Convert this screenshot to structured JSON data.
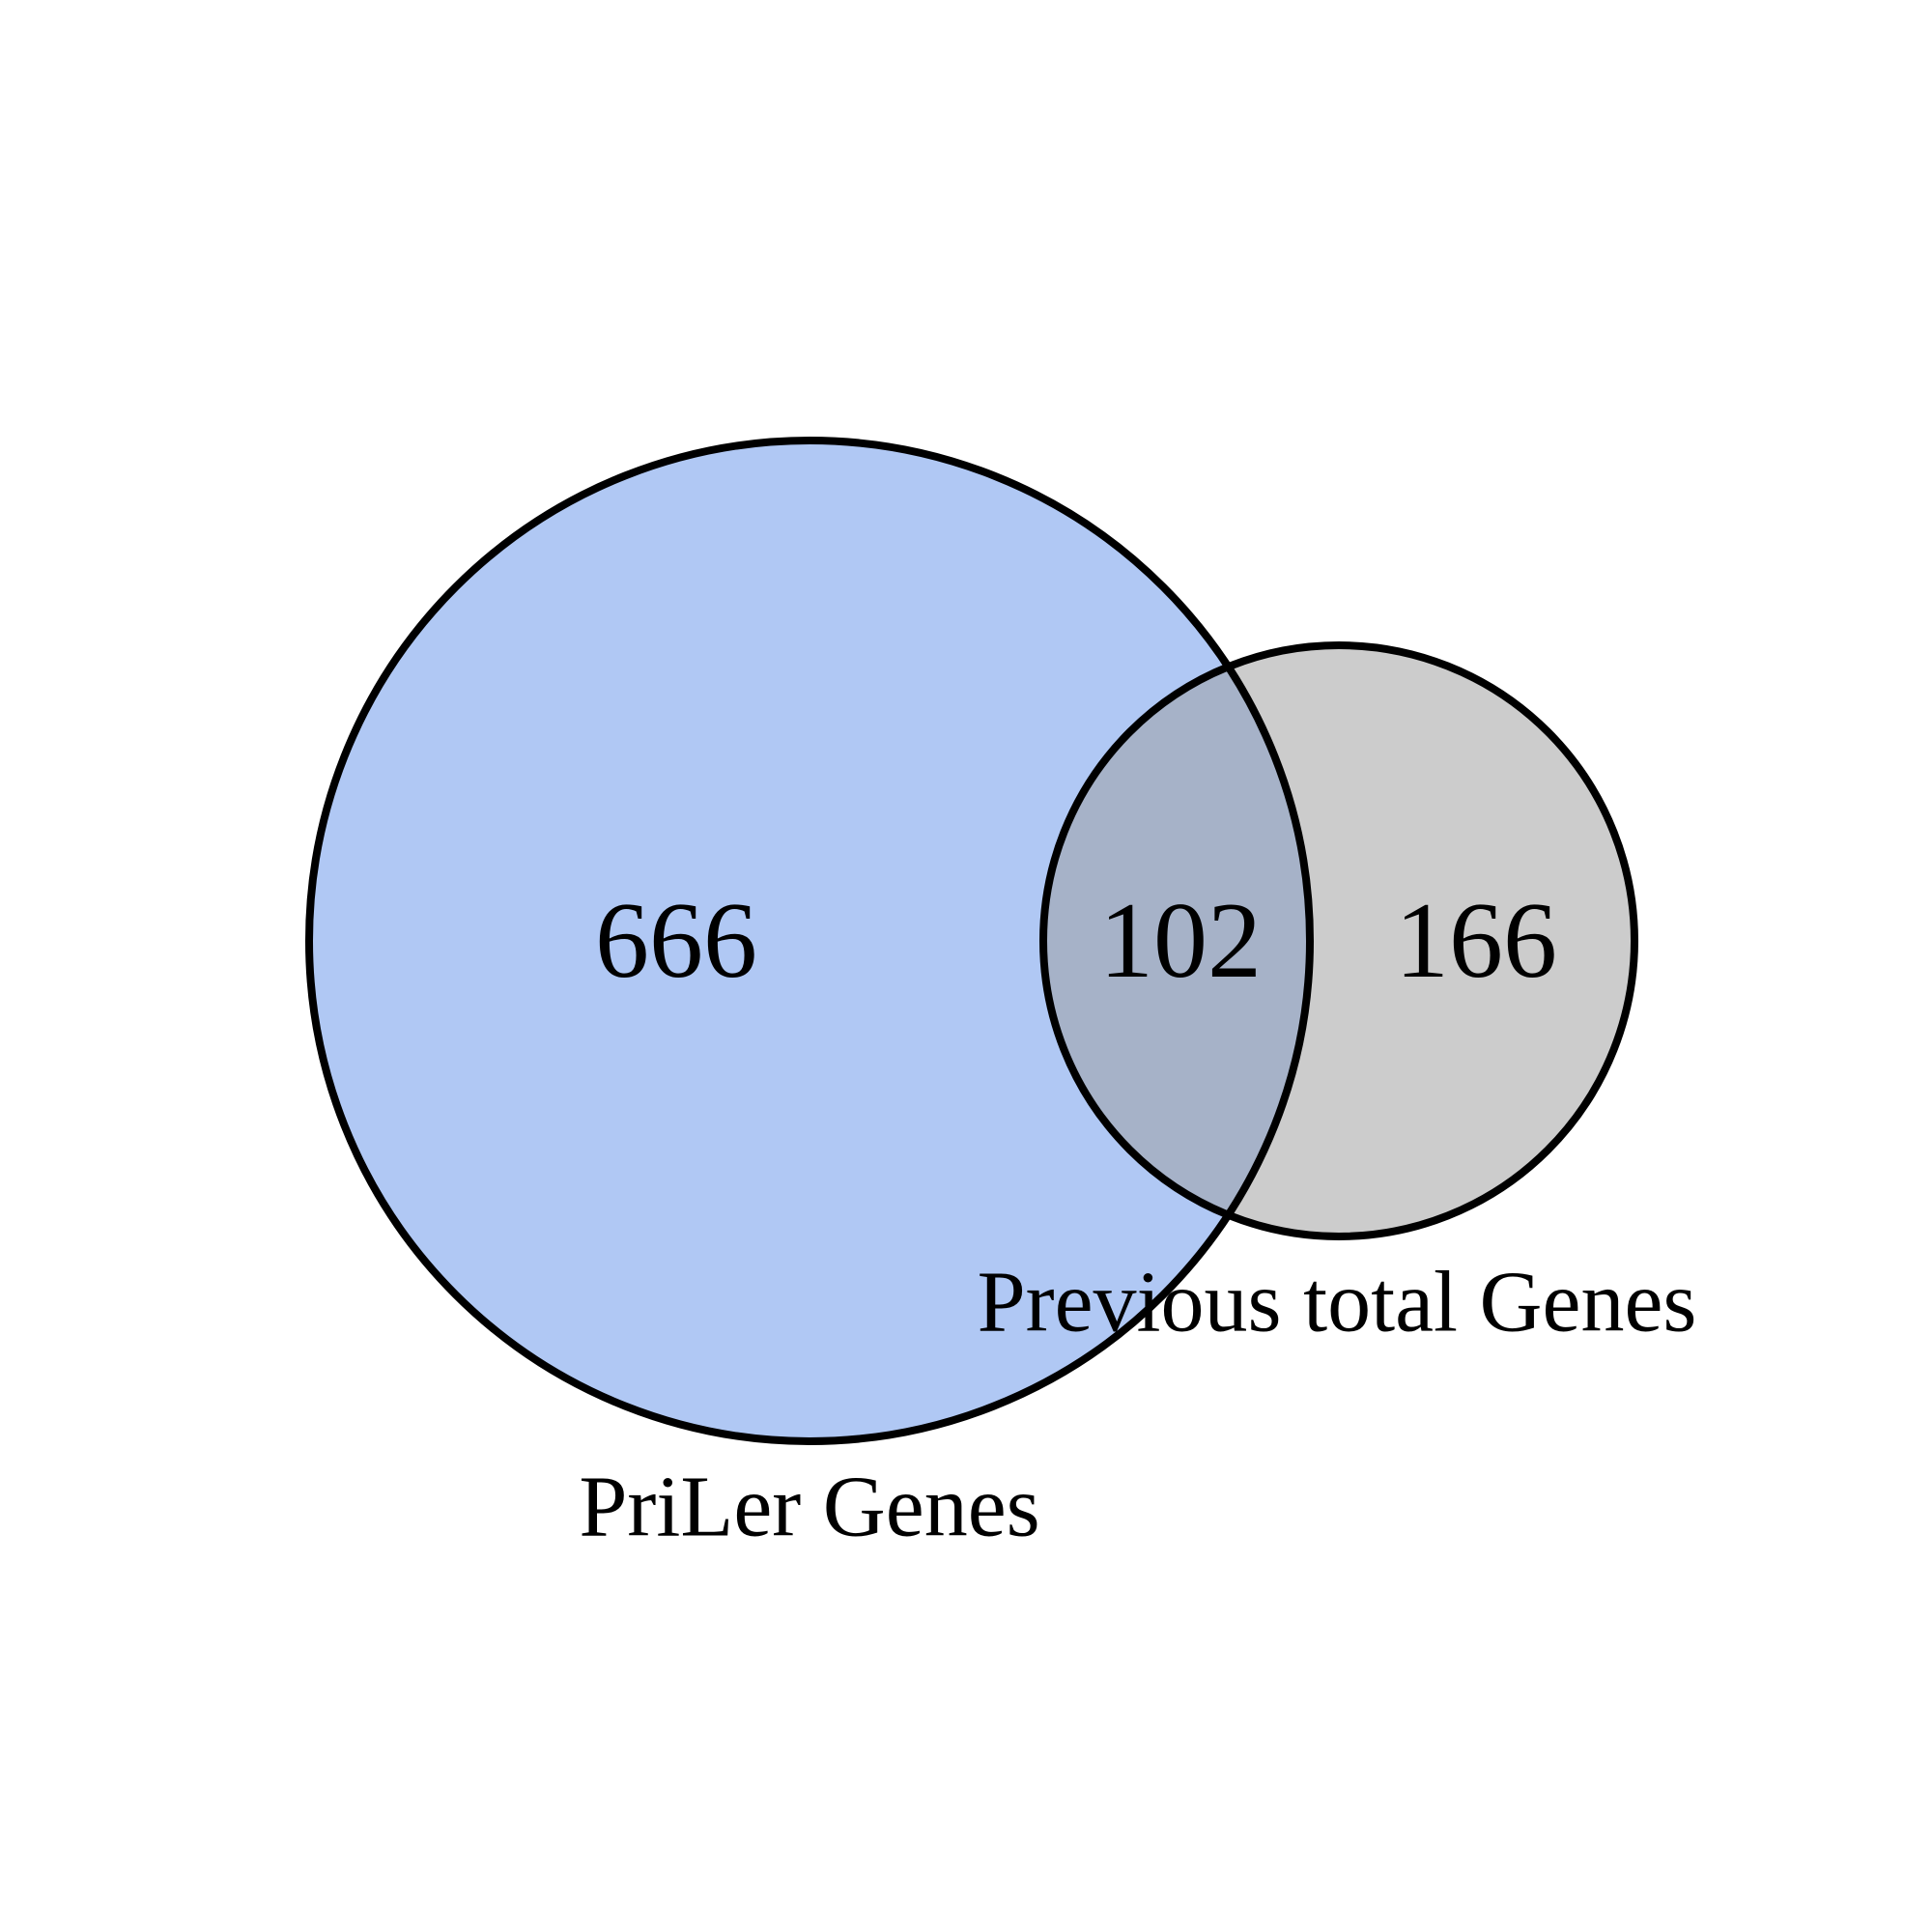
{
  "venn": {
    "sets": [
      {
        "id": "A",
        "label": "PriLer Genes",
        "color": "#6495ED"
      },
      {
        "id": "B",
        "label": "Previous total Genes",
        "color": "#A9A9A9"
      }
    ],
    "regions": {
      "only_a": "666",
      "both": "102",
      "only_b": "166"
    },
    "colors": {
      "set_a_fill": "#b0c8f4",
      "set_b_fill": "#cccccc",
      "intersection_fill": "#a6b2c8",
      "outline": "#000000"
    }
  }
}
